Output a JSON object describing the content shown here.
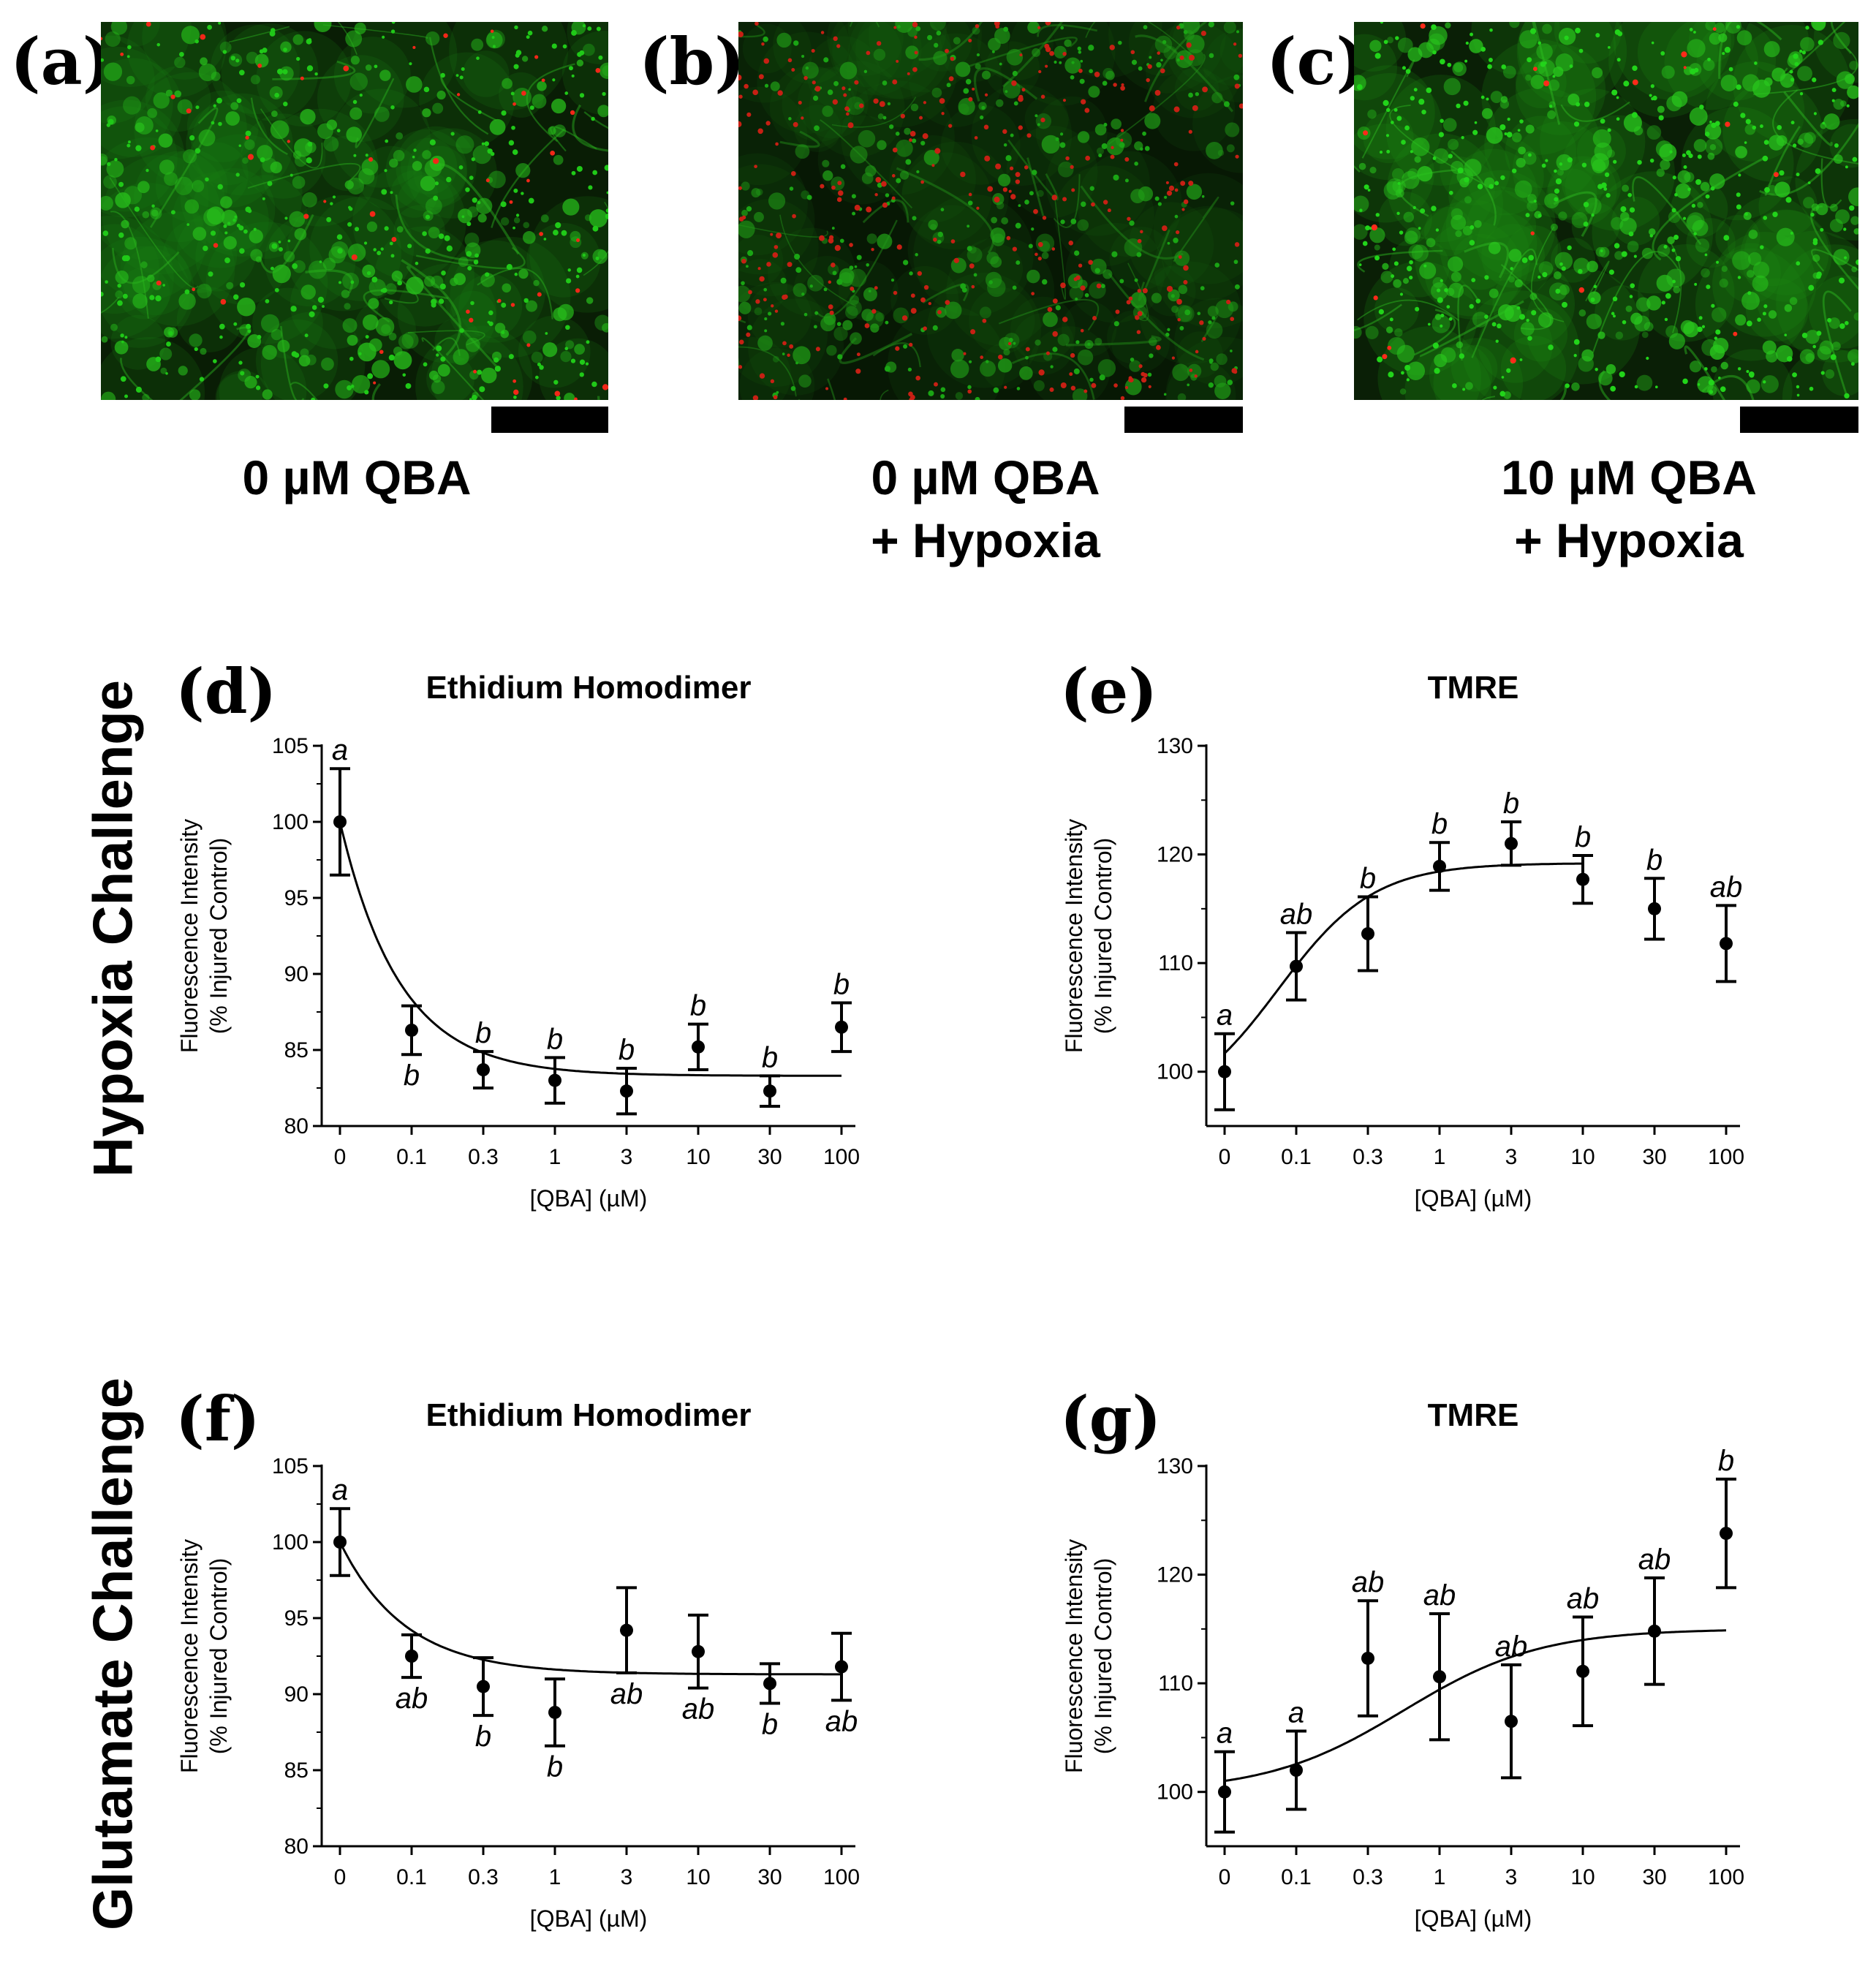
{
  "panels_top": [
    {
      "id": "a",
      "label": "(a)",
      "lines": [
        "0 µM QBA"
      ],
      "image": "green-fluorescent-neurons-sparse-red-nuclei"
    },
    {
      "id": "b",
      "label": "(b)",
      "lines": [
        "0 µM QBA",
        "+ Hypoxia"
      ],
      "image": "green-fluorescent-neurons-many-red-nuclei"
    },
    {
      "id": "c",
      "label": "(c)",
      "lines": [
        "10 µM QBA",
        "+ Hypoxia"
      ],
      "image": "green-fluorescent-neurons-few-red-nuclei"
    }
  ],
  "row_labels": {
    "hypoxia": "Hypoxia Challenge",
    "glutamate": "Glutamate Challenge"
  },
  "colors": {
    "live": "#22d41a",
    "dead": "#ff2a1a",
    "background": "#0a1f06",
    "ink": "#000000"
  },
  "chart_data": [
    {
      "id": "d",
      "label": "(d)",
      "type": "scatter",
      "title": "Ethidium Homodimer",
      "xlabel": "[QBA] (µM)",
      "ylabel": [
        "Fluorescence Intensity",
        "(% Injured Control)"
      ],
      "categories": [
        "0",
        "0.1",
        "0.3",
        "1",
        "3",
        "10",
        "30",
        "100"
      ],
      "ylim": [
        80,
        105
      ],
      "yticks": [
        80,
        85,
        90,
        95,
        100,
        105
      ],
      "values": [
        100.0,
        86.3,
        83.7,
        83.0,
        82.3,
        85.2,
        82.3,
        86.5
      ],
      "errors": [
        3.5,
        1.6,
        1.2,
        1.5,
        1.5,
        1.5,
        1.0,
        1.6
      ],
      "letters": [
        "a",
        "b",
        "b",
        "b",
        "b",
        "b",
        "b",
        "b"
      ],
      "letter_pos": [
        "above",
        "below",
        "above",
        "above",
        "above",
        "above",
        "above",
        "above"
      ],
      "fit": {
        "model": "exp_decay",
        "top": 100.0,
        "plateau": 83.3,
        "k_per_index": 1.2,
        "x_end_index": 7
      }
    },
    {
      "id": "e",
      "label": "(e)",
      "type": "scatter",
      "title": "TMRE",
      "xlabel": "[QBA] (µM)",
      "ylabel": [
        "Fluorescence Intensity",
        "(% Injured Control)"
      ],
      "categories": [
        "0",
        "0.1",
        "0.3",
        "1",
        "3",
        "10",
        "30",
        "100"
      ],
      "ylim": [
        95,
        130
      ],
      "yticks": [
        100,
        110,
        120,
        130
      ],
      "values": [
        100.0,
        109.7,
        112.7,
        118.9,
        121.0,
        117.7,
        115.0,
        111.8
      ],
      "errors": [
        3.5,
        3.1,
        3.4,
        2.2,
        2.0,
        2.2,
        2.8,
        3.5
      ],
      "letters": [
        "a",
        "ab",
        "b",
        "b",
        "b",
        "b",
        "b",
        "ab"
      ],
      "letter_pos": [
        "above",
        "above",
        "above",
        "above",
        "above",
        "above",
        "above",
        "above"
      ],
      "fit": {
        "model": "sigmoid",
        "bottom": 96.0,
        "top": 119.2,
        "mid_index": 0.75,
        "slope": 1.5,
        "x_end_index": 5
      }
    },
    {
      "id": "f",
      "label": "(f)",
      "type": "scatter",
      "title": "Ethidium Homodimer",
      "xlabel": "[QBA] (µM)",
      "ylabel": [
        "Fluorescence Intensity",
        "(% Injured Control)"
      ],
      "categories": [
        "0",
        "0.1",
        "0.3",
        "1",
        "3",
        "10",
        "30",
        "100"
      ],
      "ylim": [
        80,
        105
      ],
      "yticks": [
        80,
        85,
        90,
        95,
        100,
        105
      ],
      "values": [
        100.0,
        92.5,
        90.5,
        88.8,
        94.2,
        92.8,
        90.7,
        91.8
      ],
      "errors": [
        2.2,
        1.4,
        1.9,
        2.2,
        2.8,
        2.4,
        1.3,
        2.2
      ],
      "letters": [
        "a",
        "ab",
        "b",
        "b",
        "ab",
        "ab",
        "b",
        "ab"
      ],
      "letter_pos": [
        "above",
        "below",
        "below",
        "below",
        "below",
        "below",
        "below",
        "below"
      ],
      "fit": {
        "model": "exp_decay",
        "top": 100.0,
        "plateau": 91.3,
        "k_per_index": 1.1,
        "x_end_index": 7
      }
    },
    {
      "id": "g",
      "label": "(g)",
      "type": "scatter",
      "title": "TMRE",
      "xlabel": "[QBA] (µM)",
      "ylabel": [
        "Fluorescence Intensity",
        "(% Injured Control)"
      ],
      "categories": [
        "0",
        "0.1",
        "0.3",
        "1",
        "3",
        "10",
        "30",
        "100"
      ],
      "ylim": [
        95,
        130
      ],
      "yticks": [
        100,
        110,
        120,
        130
      ],
      "values": [
        100.0,
        102.0,
        112.3,
        110.6,
        106.5,
        111.1,
        114.8,
        123.8
      ],
      "errors": [
        3.7,
        3.6,
        5.3,
        5.8,
        5.2,
        5.0,
        4.9,
        5.0
      ],
      "letters": [
        "a",
        "a",
        "ab",
        "ab",
        "ab",
        "ab",
        "ab",
        "b"
      ],
      "letter_pos": [
        "above",
        "above",
        "above",
        "above",
        "above",
        "above",
        "above",
        "above"
      ],
      "fit": {
        "model": "sigmoid",
        "bottom": 100.0,
        "top": 115.0,
        "mid_index": 2.5,
        "slope": 1.05,
        "x_end_index": 7
      }
    }
  ]
}
